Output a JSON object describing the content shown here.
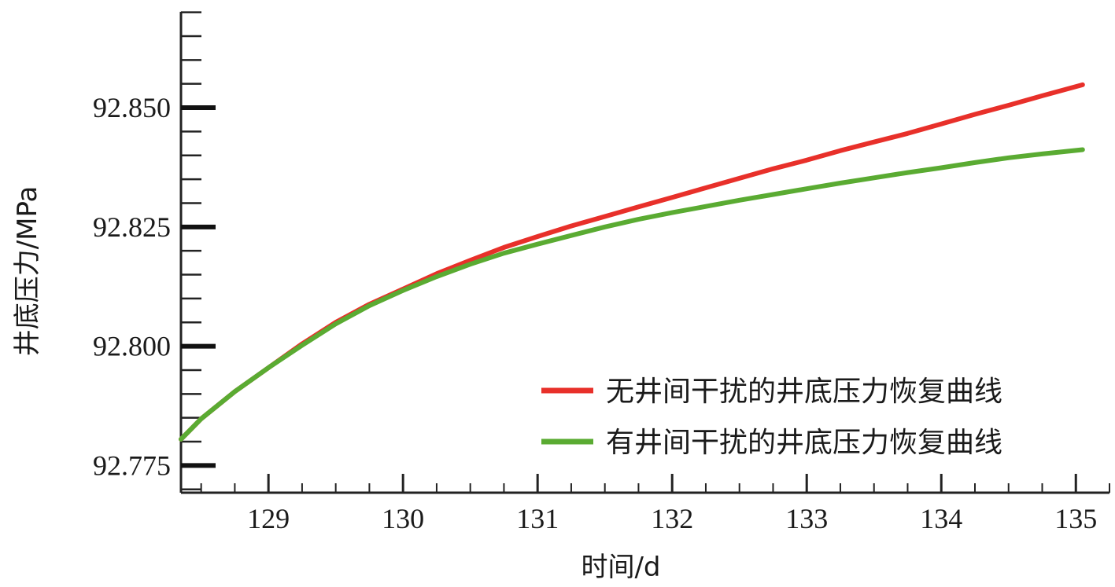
{
  "chart_data": {
    "type": "line",
    "title": "",
    "xlabel": "时间/d",
    "ylabel": "井底压力/MPa",
    "xlim": [
      128.35,
      135.25
    ],
    "ylim": [
      92.7693,
      92.8701
    ],
    "grid": false,
    "legend_position": "bottom-right",
    "x_ticks": [
      "129",
      "130",
      "131",
      "132",
      "133",
      "134",
      "135"
    ],
    "x_tick_values": [
      129,
      130,
      131,
      132,
      133,
      134,
      135
    ],
    "y_ticks": [
      "92.775",
      "92.800",
      "92.825",
      "92.850"
    ],
    "y_tick_values": [
      92.775,
      92.8,
      92.825,
      92.85
    ],
    "y_minor_step": 0.005,
    "series": [
      {
        "name": "无井间干扰的井底压力恢复曲线",
        "color": "#e8302a",
        "x": [
          128.35,
          128.5,
          128.75,
          129.0,
          129.25,
          129.5,
          129.75,
          130.0,
          130.25,
          130.5,
          130.75,
          131.0,
          131.25,
          131.5,
          131.75,
          132.0,
          132.25,
          132.5,
          132.75,
          133.0,
          133.25,
          133.5,
          133.75,
          134.0,
          134.25,
          134.5,
          134.75,
          135.05
        ],
        "y": [
          92.7805,
          92.7848,
          92.7905,
          92.7955,
          92.8005,
          92.805,
          92.8088,
          92.812,
          92.8152,
          92.818,
          92.8207,
          92.823,
          92.8252,
          92.8272,
          92.8292,
          92.8312,
          92.8332,
          92.8352,
          92.8372,
          92.839,
          92.841,
          92.8428,
          92.8446,
          92.8466,
          92.8486,
          92.8505,
          92.8525,
          92.8548
        ]
      },
      {
        "name": "有井间干扰的井底压力恢复曲线",
        "color": "#5aab32",
        "x": [
          128.35,
          128.5,
          128.75,
          129.0,
          129.25,
          129.5,
          129.75,
          130.0,
          130.25,
          130.5,
          130.75,
          131.0,
          131.25,
          131.5,
          131.75,
          132.0,
          132.25,
          132.5,
          132.75,
          133.0,
          133.25,
          133.5,
          133.75,
          134.0,
          134.25,
          134.5,
          134.75,
          135.05
        ],
        "y": [
          92.7805,
          92.7848,
          92.7905,
          92.7955,
          92.8002,
          92.8047,
          92.8085,
          92.8117,
          92.8146,
          92.8172,
          92.8195,
          92.8214,
          92.8232,
          92.825,
          92.8266,
          92.828,
          92.8293,
          92.8306,
          92.8318,
          92.833,
          92.8342,
          92.8353,
          92.8364,
          92.8374,
          92.8385,
          92.8395,
          92.8403,
          92.8412
        ]
      }
    ]
  }
}
